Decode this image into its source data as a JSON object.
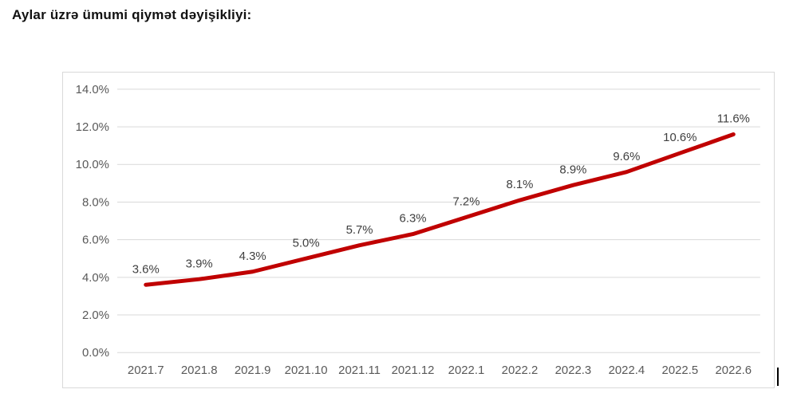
{
  "chart_data": {
    "type": "line",
    "title": "Aylar üzrə ümumi qiymət dəyişikliyi:",
    "categories": [
      "2021.7",
      "2021.8",
      "2021.9",
      "2021.10",
      "2021.11",
      "2021.12",
      "2022.1",
      "2022.2",
      "2022.3",
      "2022.4",
      "2022.5",
      "2022.6"
    ],
    "values": [
      3.6,
      3.9,
      4.3,
      5.0,
      5.7,
      6.3,
      7.2,
      8.1,
      8.9,
      9.6,
      10.6,
      11.6
    ],
    "value_labels": [
      "3.6%",
      "3.9%",
      "4.3%",
      "5.0%",
      "5.7%",
      "6.3%",
      "7.2%",
      "8.1%",
      "8.9%",
      "9.6%",
      "10.6%",
      "11.6%"
    ],
    "y_tick_labels": [
      "14.0%",
      "12.0%",
      "10.0%",
      "8.0%",
      "6.0%",
      "4.0%",
      "2.0%",
      "0.0%"
    ],
    "y_tick_values": [
      14,
      12,
      10,
      8,
      6,
      4,
      2,
      0
    ],
    "ylim": [
      0,
      14
    ],
    "xlabel": "",
    "ylabel": "",
    "grid": "horizontal",
    "legend": "none",
    "colors": {
      "line": "#c00000",
      "gridline": "#d9d9d9",
      "axis_label": "#595959",
      "data_label": "#404040",
      "frame_border": "#d9d9d9",
      "background": "#ffffff"
    }
  }
}
